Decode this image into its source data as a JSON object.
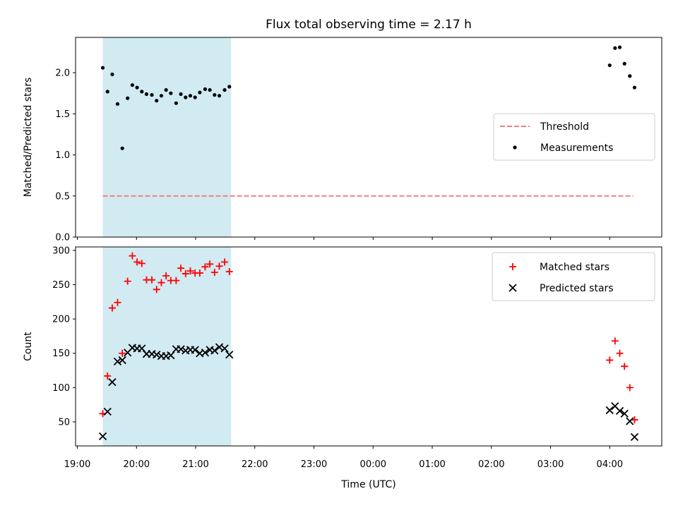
{
  "chart_data": {
    "title": "Flux total observing time = 2.17 h",
    "xlabel": "Time (UTC)",
    "x_tick_labels": [
      "19:00",
      "20:00",
      "21:00",
      "22:00",
      "23:00",
      "00:00",
      "01:00",
      "02:00",
      "03:00",
      "04:00"
    ],
    "x_tick_hours": [
      0,
      1,
      2,
      3,
      4,
      5,
      6,
      7,
      8,
      9
    ],
    "x_range_hours_from_19": [
      -0.03,
      9.88
    ],
    "shaded_interval_hours_from_19": [
      0.43,
      2.6
    ],
    "shade_color": "#add8e6",
    "panels": [
      {
        "type": "scatter",
        "ylabel": "Matched/Predicted stars",
        "ylim": [
          0,
          2.43
        ],
        "y_ticks": [
          0.0,
          0.5,
          1.0,
          1.5,
          2.0
        ],
        "y_tick_labels": [
          "0.0",
          "0.5",
          "1.0",
          "1.5",
          "2.0"
        ],
        "threshold": {
          "name": "Threshold",
          "value": 0.5,
          "x_range": [
            0.43,
            9.4
          ],
          "color": "#f08080"
        },
        "legend": {
          "position": "center-right",
          "entries": [
            "Threshold",
            "Measurements"
          ]
        },
        "series": [
          {
            "name": "Measurements",
            "color": "#000000",
            "points": [
              [
                0.43,
                2.06
              ],
              [
                0.51,
                1.77
              ],
              [
                0.59,
                1.98
              ],
              [
                0.68,
                1.62
              ],
              [
                0.76,
                1.08
              ],
              [
                0.85,
                1.69
              ],
              [
                0.93,
                1.85
              ],
              [
                1.01,
                1.82
              ],
              [
                1.09,
                1.77
              ],
              [
                1.17,
                1.74
              ],
              [
                1.26,
                1.73
              ],
              [
                1.34,
                1.66
              ],
              [
                1.42,
                1.72
              ],
              [
                1.5,
                1.79
              ],
              [
                1.58,
                1.75
              ],
              [
                1.67,
                1.63
              ],
              [
                1.75,
                1.74
              ],
              [
                1.83,
                1.7
              ],
              [
                1.91,
                1.72
              ],
              [
                1.99,
                1.7
              ],
              [
                2.07,
                1.76
              ],
              [
                2.16,
                1.8
              ],
              [
                2.24,
                1.79
              ],
              [
                2.32,
                1.73
              ],
              [
                2.4,
                1.72
              ],
              [
                2.49,
                1.79
              ],
              [
                2.57,
                1.83
              ],
              [
                9.0,
                2.09
              ],
              [
                9.09,
                2.3
              ],
              [
                9.17,
                2.31
              ],
              [
                9.25,
                2.11
              ],
              [
                9.34,
                1.96
              ],
              [
                9.42,
                1.82
              ]
            ]
          }
        ]
      },
      {
        "type": "scatter",
        "ylabel": "Count",
        "ylim": [
          15,
          305
        ],
        "y_ticks": [
          50,
          100,
          150,
          200,
          250,
          300
        ],
        "y_tick_labels": [
          "50",
          "100",
          "150",
          "200",
          "250",
          "300"
        ],
        "legend": {
          "position": "top-right",
          "entries": [
            "Matched stars",
            "Predicted stars"
          ]
        },
        "series": [
          {
            "name": "Matched stars",
            "marker": "plus",
            "color": "#ff0000",
            "points": [
              [
                0.43,
                62
              ],
              [
                0.51,
                117
              ],
              [
                0.59,
                216
              ],
              [
                0.68,
                224
              ],
              [
                0.76,
                150
              ],
              [
                0.85,
                255
              ],
              [
                0.93,
                292
              ],
              [
                1.01,
                283
              ],
              [
                1.09,
                281
              ],
              [
                1.17,
                257
              ],
              [
                1.26,
                257
              ],
              [
                1.34,
                243
              ],
              [
                1.42,
                253
              ],
              [
                1.5,
                263
              ],
              [
                1.58,
                256
              ],
              [
                1.67,
                256
              ],
              [
                1.75,
                274
              ],
              [
                1.83,
                266
              ],
              [
                1.91,
                270
              ],
              [
                1.99,
                267
              ],
              [
                2.07,
                267
              ],
              [
                2.16,
                276
              ],
              [
                2.24,
                280
              ],
              [
                2.32,
                268
              ],
              [
                2.4,
                277
              ],
              [
                2.49,
                283
              ],
              [
                2.57,
                269
              ],
              [
                9.0,
                140
              ],
              [
                9.09,
                168
              ],
              [
                9.17,
                150
              ],
              [
                9.25,
                131
              ],
              [
                9.34,
                100
              ],
              [
                9.42,
                53
              ]
            ]
          },
          {
            "name": "Predicted stars",
            "marker": "x",
            "color": "#000000",
            "points": [
              [
                0.43,
                29
              ],
              [
                0.51,
                65
              ],
              [
                0.59,
                108
              ],
              [
                0.68,
                138
              ],
              [
                0.76,
                140
              ],
              [
                0.85,
                151
              ],
              [
                0.93,
                158
              ],
              [
                1.01,
                157
              ],
              [
                1.09,
                157
              ],
              [
                1.17,
                149
              ],
              [
                1.26,
                149
              ],
              [
                1.34,
                148
              ],
              [
                1.42,
                146
              ],
              [
                1.5,
                146
              ],
              [
                1.58,
                147
              ],
              [
                1.67,
                156
              ],
              [
                1.75,
                156
              ],
              [
                1.83,
                154
              ],
              [
                1.91,
                155
              ],
              [
                1.99,
                155
              ],
              [
                2.07,
                150
              ],
              [
                2.16,
                151
              ],
              [
                2.24,
                155
              ],
              [
                2.32,
                154
              ],
              [
                2.4,
                159
              ],
              [
                2.49,
                157
              ],
              [
                2.57,
                148
              ],
              [
                9.0,
                67
              ],
              [
                9.09,
                73
              ],
              [
                9.17,
                66
              ],
              [
                9.25,
                62
              ],
              [
                9.34,
                51
              ],
              [
                9.42,
                28
              ]
            ]
          }
        ]
      }
    ]
  }
}
